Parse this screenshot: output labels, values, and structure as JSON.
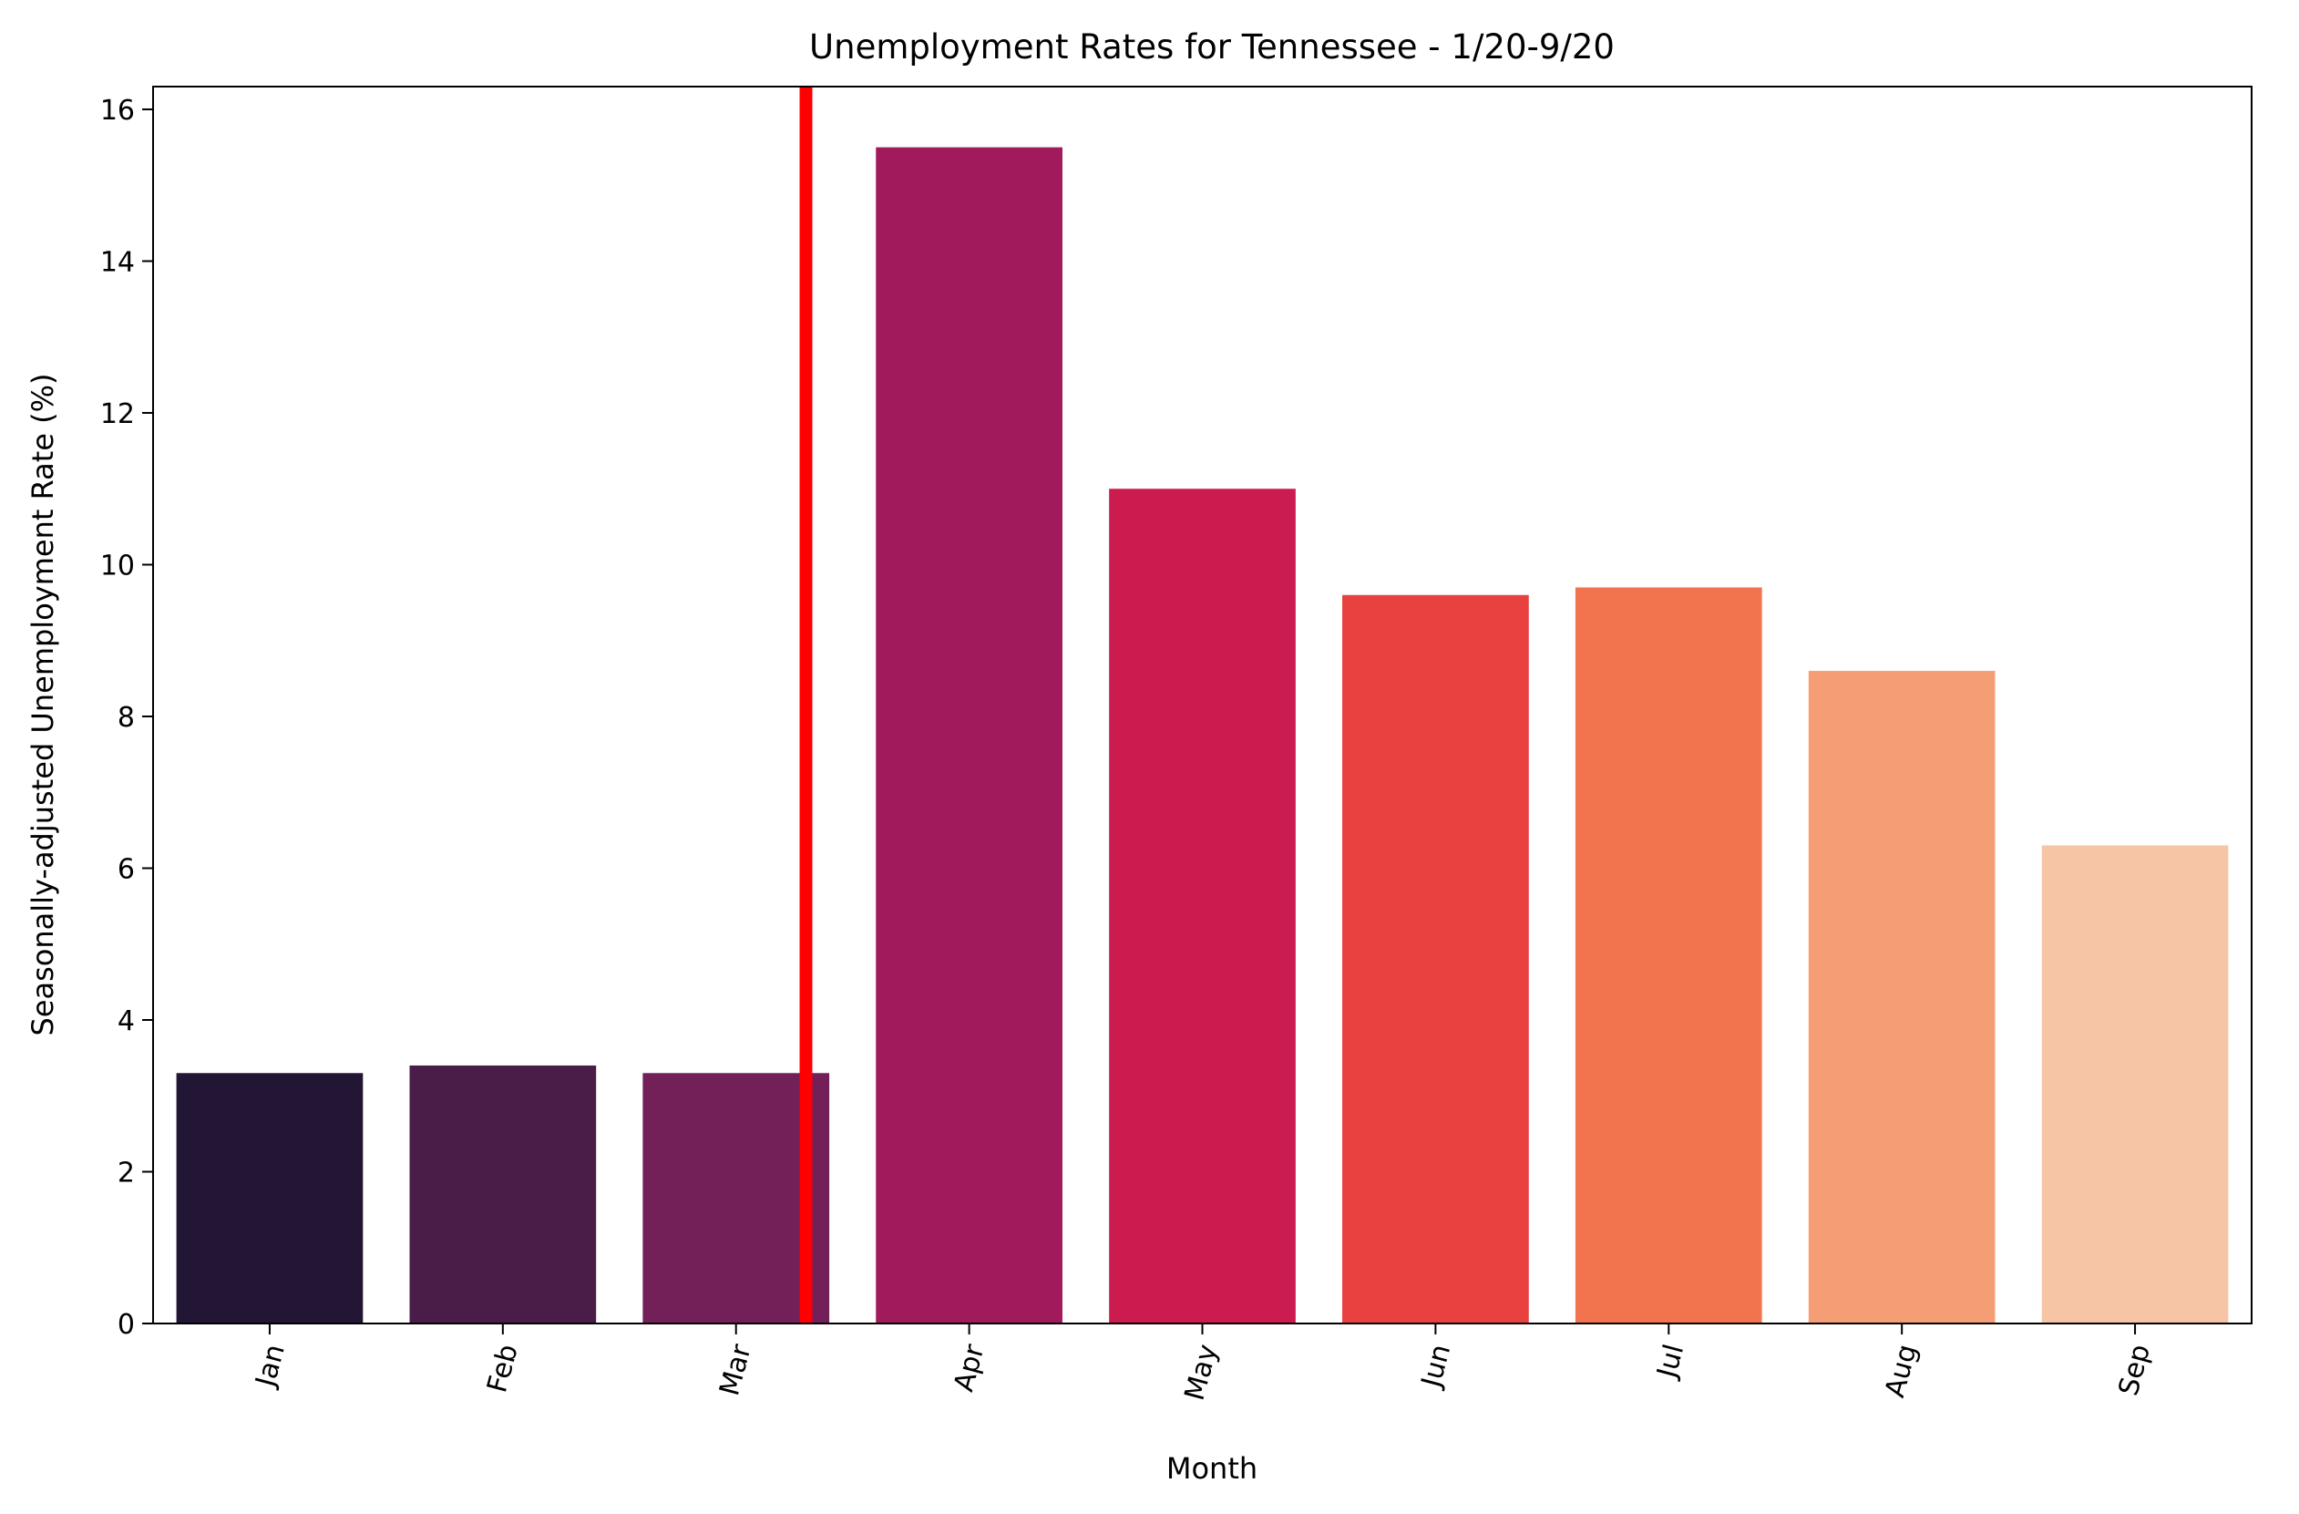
{
  "chart_data": {
    "type": "bar",
    "title": "Unemployment Rates for Tennessee - 1/20-9/20",
    "xlabel": "Month",
    "ylabel": "Seasonally-adjusted Unemployment Rate (%)",
    "categories": [
      "Jan",
      "Feb",
      "Mar",
      "Apr",
      "May",
      "Jun",
      "Jul",
      "Aug",
      "Sep"
    ],
    "values": [
      3.3,
      3.4,
      3.3,
      15.5,
      11.0,
      9.6,
      9.7,
      8.6,
      6.3
    ],
    "colors": [
      "#231634",
      "#4a1d48",
      "#731f58",
      "#a11a5b",
      "#cb1b4f",
      "#e8413f",
      "#f2744f",
      "#f59e75",
      "#f6c5a6"
    ],
    "ylim": [
      0,
      16.3
    ],
    "yticks": [
      0,
      2,
      4,
      6,
      8,
      10,
      12,
      14,
      16
    ],
    "grid": false,
    "reference_line": {
      "type": "vertical",
      "position_category_offset": 2.3,
      "color": "#ff0000"
    }
  }
}
